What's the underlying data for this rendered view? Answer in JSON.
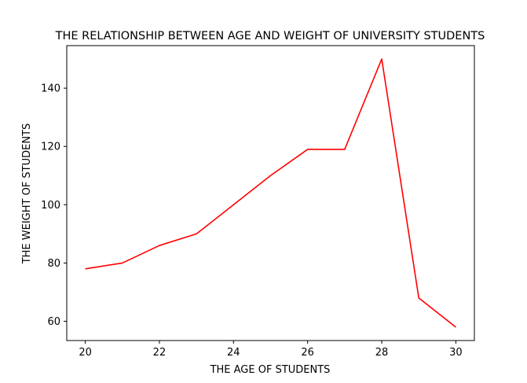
{
  "chart_data": {
    "type": "line",
    "title": "THE RELATIONSHIP BETWEEN AGE AND WEIGHT OF UNIVERSITY STUDENTS",
    "xlabel": "THE AGE OF STUDENTS",
    "ylabel": "THE WEIGHT OF STUDENTS",
    "xlim": [
      19.5,
      30.5
    ],
    "ylim": [
      53.4,
      154.6
    ],
    "xticks": [
      20,
      22,
      24,
      26,
      28,
      30
    ],
    "yticks": [
      60,
      80,
      100,
      120,
      140
    ],
    "grid": false,
    "legend": "none",
    "series": [
      {
        "color": "#ff0000",
        "x": [
          20,
          21,
          22,
          23,
          24,
          25,
          26,
          27,
          28,
          29,
          30
        ],
        "y": [
          78,
          80,
          86,
          90,
          100,
          110,
          119,
          119,
          150,
          68,
          58
        ]
      }
    ]
  }
}
